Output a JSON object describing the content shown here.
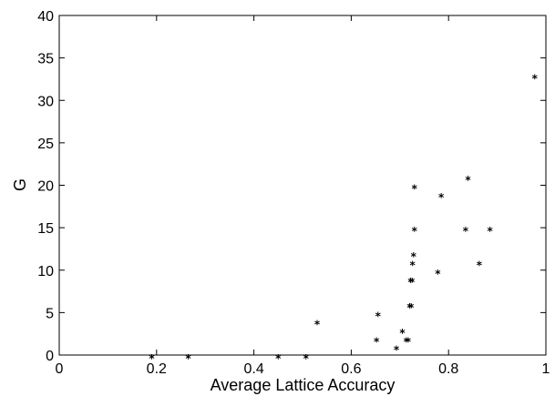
{
  "chart_data": {
    "type": "scatter",
    "title": "",
    "xlabel": "Average Lattice Accuracy",
    "ylabel": "G",
    "xlim": [
      0,
      1
    ],
    "ylim": [
      0,
      40
    ],
    "x_ticks": [
      "0",
      "0.2",
      "0.4",
      "0.6",
      "0.8",
      "1"
    ],
    "y_ticks": [
      "0",
      "5",
      "10",
      "15",
      "20",
      "25",
      "30",
      "35",
      "40"
    ],
    "grid": false,
    "legend": "none",
    "marker": "*",
    "marker_color": "#000000",
    "series": [
      {
        "points": [
          {
            "x": 0.19,
            "y": 0
          },
          {
            "x": 0.265,
            "y": 0
          },
          {
            "x": 0.45,
            "y": 0
          },
          {
            "x": 0.507,
            "y": 0
          },
          {
            "x": 0.53,
            "y": 4
          },
          {
            "x": 0.652,
            "y": 2
          },
          {
            "x": 0.655,
            "y": 5
          },
          {
            "x": 0.693,
            "y": 1
          },
          {
            "x": 0.705,
            "y": 3
          },
          {
            "x": 0.713,
            "y": 2
          },
          {
            "x": 0.717,
            "y": 2
          },
          {
            "x": 0.72,
            "y": 6
          },
          {
            "x": 0.723,
            "y": 6
          },
          {
            "x": 0.722,
            "y": 9
          },
          {
            "x": 0.725,
            "y": 9
          },
          {
            "x": 0.726,
            "y": 11
          },
          {
            "x": 0.728,
            "y": 12
          },
          {
            "x": 0.73,
            "y": 15
          },
          {
            "x": 0.73,
            "y": 20
          },
          {
            "x": 0.778,
            "y": 10
          },
          {
            "x": 0.785,
            "y": 19
          },
          {
            "x": 0.835,
            "y": 15
          },
          {
            "x": 0.84,
            "y": 21
          },
          {
            "x": 0.863,
            "y": 11
          },
          {
            "x": 0.885,
            "y": 15
          },
          {
            "x": 0.977,
            "y": 33
          }
        ]
      }
    ]
  }
}
